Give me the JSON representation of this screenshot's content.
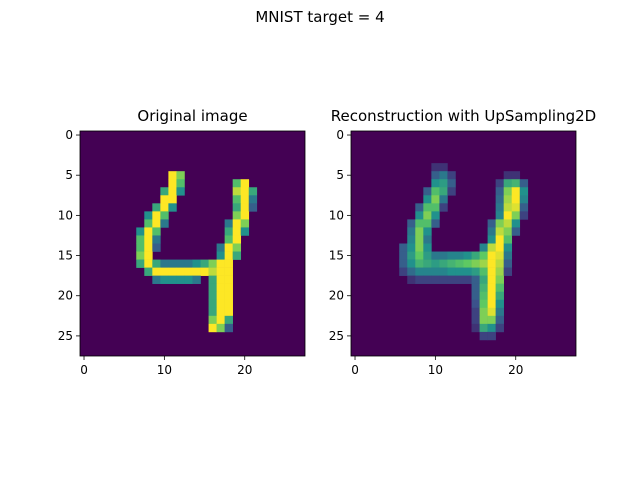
{
  "chart_data": {
    "type": "heatmap",
    "suptitle": "MNIST target = 4",
    "colormap": "viridis",
    "colormap_stops": [
      "#440154",
      "#3b528b",
      "#21918c",
      "#5ec962",
      "#fde725"
    ],
    "axis_range": [
      -0.5,
      27.5
    ],
    "panels": [
      {
        "title": "Original image",
        "xticks": [
          "0",
          "10",
          "20"
        ],
        "yticks": [
          "0",
          "5",
          "10",
          "15",
          "20",
          "25"
        ],
        "pixels": [
          [
            5,
            11,
            1.0
          ],
          [
            5,
            12,
            0.8
          ],
          [
            6,
            11,
            1.0
          ],
          [
            6,
            12,
            0.7
          ],
          [
            6,
            19,
            0.7
          ],
          [
            6,
            20,
            1.0
          ],
          [
            7,
            10,
            0.6
          ],
          [
            7,
            11,
            1.0
          ],
          [
            7,
            12,
            0.5
          ],
          [
            7,
            19,
            0.9
          ],
          [
            7,
            20,
            1.0
          ],
          [
            7,
            21,
            0.6
          ],
          [
            8,
            10,
            1.0
          ],
          [
            8,
            11,
            1.0
          ],
          [
            8,
            19,
            0.7
          ],
          [
            8,
            20,
            1.0
          ],
          [
            8,
            21,
            0.4
          ],
          [
            9,
            9,
            0.6
          ],
          [
            9,
            10,
            1.0
          ],
          [
            9,
            11,
            0.5
          ],
          [
            9,
            19,
            0.6
          ],
          [
            9,
            20,
            1.0
          ],
          [
            9,
            21,
            0.3
          ],
          [
            10,
            8,
            0.5
          ],
          [
            10,
            9,
            1.0
          ],
          [
            10,
            10,
            0.7
          ],
          [
            10,
            19,
            0.8
          ],
          [
            10,
            20,
            1.0
          ],
          [
            11,
            8,
            0.7
          ],
          [
            11,
            9,
            1.0
          ],
          [
            11,
            10,
            0.4
          ],
          [
            11,
            18,
            0.4
          ],
          [
            11,
            19,
            1.0
          ],
          [
            11,
            20,
            0.8
          ],
          [
            12,
            7,
            0.5
          ],
          [
            12,
            8,
            1.0
          ],
          [
            12,
            9,
            0.7
          ],
          [
            12,
            18,
            0.6
          ],
          [
            12,
            19,
            1.0
          ],
          [
            12,
            20,
            0.5
          ],
          [
            13,
            7,
            0.7
          ],
          [
            13,
            8,
            1.0
          ],
          [
            13,
            9,
            0.4
          ],
          [
            13,
            18,
            0.7
          ],
          [
            13,
            19,
            1.0
          ],
          [
            14,
            7,
            0.7
          ],
          [
            14,
            8,
            1.0
          ],
          [
            14,
            9,
            0.3
          ],
          [
            14,
            17,
            0.4
          ],
          [
            14,
            18,
            1.0
          ],
          [
            14,
            19,
            0.8
          ],
          [
            15,
            7,
            0.8
          ],
          [
            15,
            8,
            1.0
          ],
          [
            15,
            17,
            0.5
          ],
          [
            15,
            18,
            1.0
          ],
          [
            15,
            19,
            0.6
          ],
          [
            16,
            7,
            0.6
          ],
          [
            16,
            8,
            1.0
          ],
          [
            16,
            9,
            0.6
          ],
          [
            16,
            10,
            0.4
          ],
          [
            16,
            11,
            0.4
          ],
          [
            16,
            12,
            0.4
          ],
          [
            16,
            13,
            0.4
          ],
          [
            16,
            14,
            0.5
          ],
          [
            16,
            15,
            0.6
          ],
          [
            16,
            16,
            0.8
          ],
          [
            16,
            17,
            1.0
          ],
          [
            16,
            18,
            1.0
          ],
          [
            17,
            8,
            0.6
          ],
          [
            17,
            9,
            1.0
          ],
          [
            17,
            10,
            1.0
          ],
          [
            17,
            11,
            1.0
          ],
          [
            17,
            12,
            1.0
          ],
          [
            17,
            13,
            1.0
          ],
          [
            17,
            14,
            1.0
          ],
          [
            17,
            15,
            1.0
          ],
          [
            17,
            16,
            0.9
          ],
          [
            17,
            17,
            1.0
          ],
          [
            17,
            18,
            1.0
          ],
          [
            18,
            9,
            0.4
          ],
          [
            18,
            10,
            0.5
          ],
          [
            18,
            11,
            0.5
          ],
          [
            18,
            12,
            0.5
          ],
          [
            18,
            13,
            0.5
          ],
          [
            18,
            14,
            0.4
          ],
          [
            18,
            16,
            0.6
          ],
          [
            18,
            17,
            1.0
          ],
          [
            18,
            18,
            1.0
          ],
          [
            19,
            16,
            0.6
          ],
          [
            19,
            17,
            1.0
          ],
          [
            19,
            18,
            1.0
          ],
          [
            20,
            16,
            0.6
          ],
          [
            20,
            17,
            1.0
          ],
          [
            20,
            18,
            1.0
          ],
          [
            21,
            16,
            0.6
          ],
          [
            21,
            17,
            1.0
          ],
          [
            21,
            18,
            1.0
          ],
          [
            22,
            16,
            0.6
          ],
          [
            22,
            17,
            1.0
          ],
          [
            22,
            18,
            1.0
          ],
          [
            23,
            16,
            0.8
          ],
          [
            23,
            17,
            1.0
          ],
          [
            23,
            18,
            0.6
          ],
          [
            24,
            16,
            1.0
          ],
          [
            24,
            17,
            0.8
          ],
          [
            24,
            18,
            0.3
          ]
        ]
      },
      {
        "title": "Reconstruction with UpSampling2D",
        "xticks": [
          "0",
          "10",
          "20"
        ],
        "yticks": [
          "0",
          "5",
          "10",
          "15",
          "20",
          "25"
        ],
        "pixels": [
          [
            4,
            10,
            0.15
          ],
          [
            4,
            11,
            0.15
          ],
          [
            5,
            10,
            0.3
          ],
          [
            5,
            11,
            0.4
          ],
          [
            5,
            12,
            0.2
          ],
          [
            5,
            19,
            0.15
          ],
          [
            5,
            20,
            0.15
          ],
          [
            6,
            10,
            0.5
          ],
          [
            6,
            11,
            0.55
          ],
          [
            6,
            12,
            0.3
          ],
          [
            6,
            18,
            0.2
          ],
          [
            6,
            19,
            0.6
          ],
          [
            6,
            20,
            0.65
          ],
          [
            6,
            21,
            0.3
          ],
          [
            7,
            9,
            0.3
          ],
          [
            7,
            10,
            0.7
          ],
          [
            7,
            11,
            0.6
          ],
          [
            7,
            12,
            0.2
          ],
          [
            7,
            18,
            0.3
          ],
          [
            7,
            19,
            0.8
          ],
          [
            7,
            20,
            1.0
          ],
          [
            7,
            21,
            0.5
          ],
          [
            8,
            9,
            0.5
          ],
          [
            8,
            10,
            0.8
          ],
          [
            8,
            11,
            0.4
          ],
          [
            8,
            18,
            0.35
          ],
          [
            8,
            19,
            0.85
          ],
          [
            8,
            20,
            1.0
          ],
          [
            8,
            21,
            0.45
          ],
          [
            9,
            8,
            0.3
          ],
          [
            9,
            9,
            0.7
          ],
          [
            9,
            10,
            0.7
          ],
          [
            9,
            11,
            0.2
          ],
          [
            9,
            18,
            0.4
          ],
          [
            9,
            19,
            0.9
          ],
          [
            9,
            20,
            0.95
          ],
          [
            9,
            21,
            0.3
          ],
          [
            10,
            8,
            0.5
          ],
          [
            10,
            9,
            0.8
          ],
          [
            10,
            10,
            0.5
          ],
          [
            10,
            18,
            0.45
          ],
          [
            10,
            19,
            1.0
          ],
          [
            10,
            20,
            0.8
          ],
          [
            10,
            21,
            0.2
          ],
          [
            11,
            7,
            0.3
          ],
          [
            11,
            8,
            0.7
          ],
          [
            11,
            9,
            0.7
          ],
          [
            11,
            10,
            0.3
          ],
          [
            11,
            17,
            0.3
          ],
          [
            11,
            18,
            0.8
          ],
          [
            11,
            19,
            0.9
          ],
          [
            11,
            20,
            0.5
          ],
          [
            12,
            7,
            0.4
          ],
          [
            12,
            8,
            0.8
          ],
          [
            12,
            9,
            0.5
          ],
          [
            12,
            17,
            0.4
          ],
          [
            12,
            18,
            0.9
          ],
          [
            12,
            19,
            0.8
          ],
          [
            12,
            20,
            0.3
          ],
          [
            13,
            7,
            0.45
          ],
          [
            13,
            8,
            0.8
          ],
          [
            13,
            9,
            0.4
          ],
          [
            13,
            17,
            0.5
          ],
          [
            13,
            18,
            1.0
          ],
          [
            13,
            19,
            0.7
          ],
          [
            14,
            6,
            0.3
          ],
          [
            14,
            7,
            0.5
          ],
          [
            14,
            8,
            0.8
          ],
          [
            14,
            9,
            0.5
          ],
          [
            14,
            16,
            0.45
          ],
          [
            14,
            17,
            0.9
          ],
          [
            14,
            18,
            1.0
          ],
          [
            14,
            19,
            0.5
          ],
          [
            15,
            6,
            0.3
          ],
          [
            15,
            7,
            0.55
          ],
          [
            15,
            8,
            0.75
          ],
          [
            15,
            9,
            0.55
          ],
          [
            15,
            10,
            0.4
          ],
          [
            15,
            11,
            0.4
          ],
          [
            15,
            12,
            0.45
          ],
          [
            15,
            13,
            0.45
          ],
          [
            15,
            14,
            0.5
          ],
          [
            15,
            15,
            0.6
          ],
          [
            15,
            16,
            0.75
          ],
          [
            15,
            17,
            1.0
          ],
          [
            15,
            18,
            0.95
          ],
          [
            15,
            19,
            0.4
          ],
          [
            16,
            6,
            0.3
          ],
          [
            16,
            7,
            0.5
          ],
          [
            16,
            8,
            0.65
          ],
          [
            16,
            9,
            0.6
          ],
          [
            16,
            10,
            0.55
          ],
          [
            16,
            11,
            0.6
          ],
          [
            16,
            12,
            0.65
          ],
          [
            16,
            13,
            0.7
          ],
          [
            16,
            14,
            0.75
          ],
          [
            16,
            15,
            0.8
          ],
          [
            16,
            16,
            0.85
          ],
          [
            16,
            17,
            1.0
          ],
          [
            16,
            18,
            0.9
          ],
          [
            16,
            19,
            0.3
          ],
          [
            17,
            6,
            0.2
          ],
          [
            17,
            7,
            0.35
          ],
          [
            17,
            8,
            0.45
          ],
          [
            17,
            9,
            0.45
          ],
          [
            17,
            10,
            0.45
          ],
          [
            17,
            11,
            0.45
          ],
          [
            17,
            12,
            0.5
          ],
          [
            17,
            13,
            0.5
          ],
          [
            17,
            14,
            0.5
          ],
          [
            17,
            15,
            0.55
          ],
          [
            17,
            16,
            0.7
          ],
          [
            17,
            17,
            1.0
          ],
          [
            17,
            18,
            0.85
          ],
          [
            17,
            19,
            0.2
          ],
          [
            18,
            7,
            0.15
          ],
          [
            18,
            8,
            0.2
          ],
          [
            18,
            9,
            0.2
          ],
          [
            18,
            10,
            0.2
          ],
          [
            18,
            11,
            0.2
          ],
          [
            18,
            12,
            0.2
          ],
          [
            18,
            13,
            0.2
          ],
          [
            18,
            14,
            0.2
          ],
          [
            18,
            15,
            0.3
          ],
          [
            18,
            16,
            0.6
          ],
          [
            18,
            17,
            1.0
          ],
          [
            18,
            18,
            0.8
          ],
          [
            19,
            15,
            0.3
          ],
          [
            19,
            16,
            0.65
          ],
          [
            19,
            17,
            1.0
          ],
          [
            19,
            18,
            0.7
          ],
          [
            20,
            15,
            0.3
          ],
          [
            20,
            16,
            0.7
          ],
          [
            20,
            17,
            1.0
          ],
          [
            20,
            18,
            0.6
          ],
          [
            21,
            15,
            0.25
          ],
          [
            21,
            16,
            0.75
          ],
          [
            21,
            17,
            1.0
          ],
          [
            21,
            18,
            0.5
          ],
          [
            22,
            15,
            0.2
          ],
          [
            22,
            16,
            0.8
          ],
          [
            22,
            17,
            0.95
          ],
          [
            22,
            18,
            0.4
          ],
          [
            23,
            15,
            0.2
          ],
          [
            23,
            16,
            0.8
          ],
          [
            23,
            17,
            0.8
          ],
          [
            23,
            18,
            0.3
          ],
          [
            24,
            15,
            0.15
          ],
          [
            24,
            16,
            0.6
          ],
          [
            24,
            17,
            0.5
          ],
          [
            24,
            18,
            0.2
          ],
          [
            25,
            16,
            0.2
          ],
          [
            25,
            17,
            0.2
          ]
        ]
      }
    ]
  }
}
